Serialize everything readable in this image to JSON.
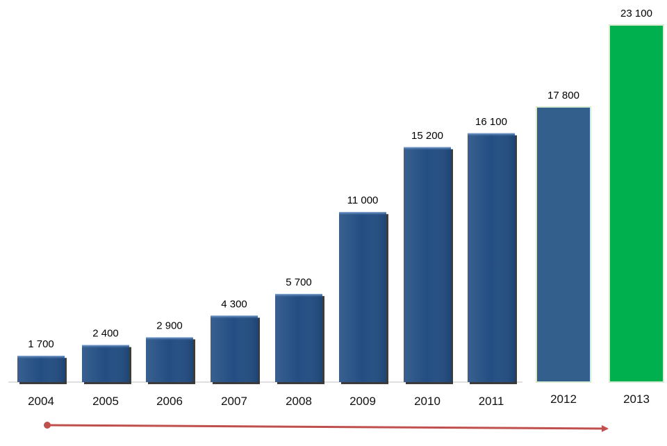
{
  "chart_data": {
    "type": "bar",
    "title": "",
    "xlabel": "",
    "ylabel": "",
    "categories": [
      "2004",
      "2005",
      "2006",
      "2007",
      "2008",
      "2009",
      "2010",
      "2011",
      "2012",
      "2013"
    ],
    "values": [
      1700,
      2400,
      2900,
      4300,
      5700,
      11000,
      15200,
      16100,
      17800,
      23100
    ],
    "value_labels": [
      "1 700",
      "2 400",
      "2 900",
      "4 300",
      "5 700",
      "11 000",
      "15 200",
      "16 100",
      "17 800",
      "23 100"
    ],
    "ylim": [
      0,
      23100
    ],
    "grid": false,
    "legend": "none",
    "bar_colors": [
      "#234e83",
      "#234e83",
      "#234e83",
      "#234e83",
      "#234e83",
      "#234e83",
      "#234e83",
      "#234e83",
      "#325f8c",
      "#00b04f"
    ],
    "arrow_color": "#c0504d"
  }
}
